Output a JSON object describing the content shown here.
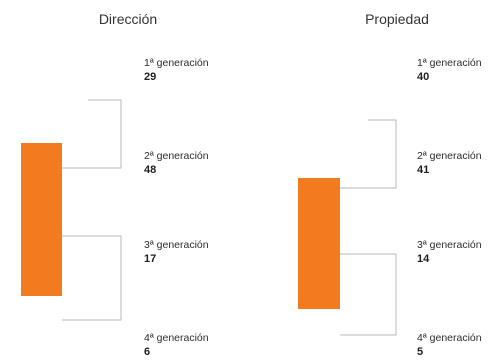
{
  "chart_data": [
    {
      "type": "bar",
      "title": "Dirección",
      "color": "#f47a1f",
      "categories": [
        "1ª generación",
        "2ª generación",
        "3ª generación",
        "4ª generación"
      ],
      "values": [
        29,
        48,
        17,
        6
      ]
    },
    {
      "type": "bar",
      "title": "Propiedad",
      "color": "#f47a1f",
      "categories": [
        "1ª generación",
        "2ª generación",
        "3ª generación",
        "4ª generación"
      ],
      "values": [
        40,
        41,
        14,
        5
      ]
    }
  ]
}
